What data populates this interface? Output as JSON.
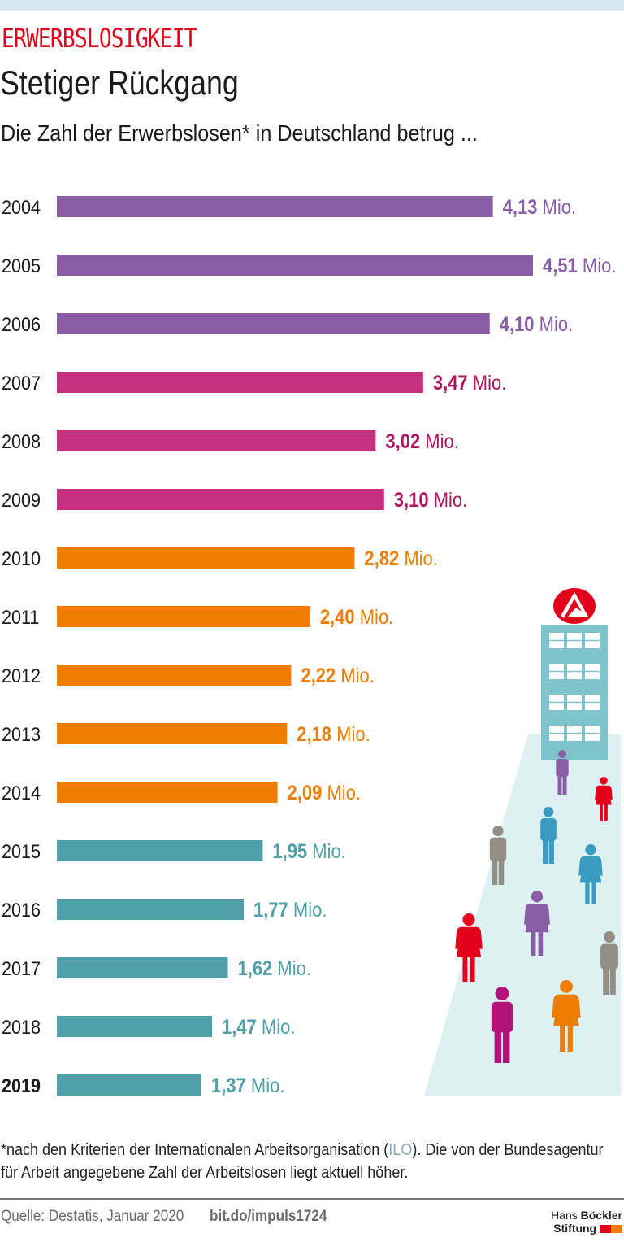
{
  "header": {
    "kicker": "ERWERBSLOSIGKEIT",
    "title": "Stetiger Rückgang",
    "subtitle": "Die Zahl der Erwerbslosen* in Deutschland betrug ..."
  },
  "chart_data": {
    "type": "bar",
    "orientation": "horizontal",
    "unit": "Mio.",
    "categories": [
      "2004",
      "2005",
      "2006",
      "2007",
      "2008",
      "2009",
      "2010",
      "2011",
      "2012",
      "2013",
      "2014",
      "2015",
      "2016",
      "2017",
      "2018",
      "2019"
    ],
    "values": [
      4.13,
      4.51,
      4.1,
      3.47,
      3.02,
      3.1,
      2.82,
      2.4,
      2.22,
      2.18,
      2.09,
      1.95,
      1.77,
      1.62,
      1.47,
      1.37
    ],
    "value_labels": [
      "4,13",
      "4,51",
      "4,10",
      "3,47",
      "3,02",
      "3,10",
      "2,82",
      "2,40",
      "2,22",
      "2,18",
      "2,09",
      "1,95",
      "1,77",
      "1,62",
      "1,47",
      "1,37"
    ],
    "bar_colors": [
      "#8a5ea6",
      "#8a5ea6",
      "#8a5ea6",
      "#c5317f",
      "#c5317f",
      "#c5317f",
      "#ef7d00",
      "#ef7d00",
      "#ef7d00",
      "#ef7d00",
      "#ef7d00",
      "#519fa9",
      "#519fa9",
      "#519fa9",
      "#519fa9",
      "#519fa9"
    ],
    "label_colors": [
      "#8a5ea6",
      "#8a5ea6",
      "#8a5ea6",
      "#b2155f",
      "#b2155f",
      "#b2155f",
      "#ef7d00",
      "#ef7d00",
      "#ef7d00",
      "#ef7d00",
      "#ef7d00",
      "#519fa9",
      "#519fa9",
      "#519fa9",
      "#519fa9",
      "#519fa9"
    ],
    "highlighted_category": "2019",
    "xlim": [
      0,
      4.51
    ],
    "grid": false
  },
  "footnote": {
    "before": "*nach den Kriterien der Internationalen Arbeitsorganisation (",
    "ilo": "ILO",
    "after": "). Die von der Bundesagentur für Arbeit angegebene Zahl der Arbeitslosen liegt aktuell höher."
  },
  "footer": {
    "source": "Quelle: Destatis, Januar 2020",
    "link": "bit.do/impuls1724",
    "logo_line1_light": "Hans",
    "logo_line1_bold": "Böckler",
    "logo_line2": "Stiftung"
  },
  "colors": {
    "accent": "#e2001a",
    "logo_red": "#e2001a",
    "logo_orange": "#ef7d00",
    "path": "#ddf0f2",
    "building": "#7fc3cc"
  }
}
